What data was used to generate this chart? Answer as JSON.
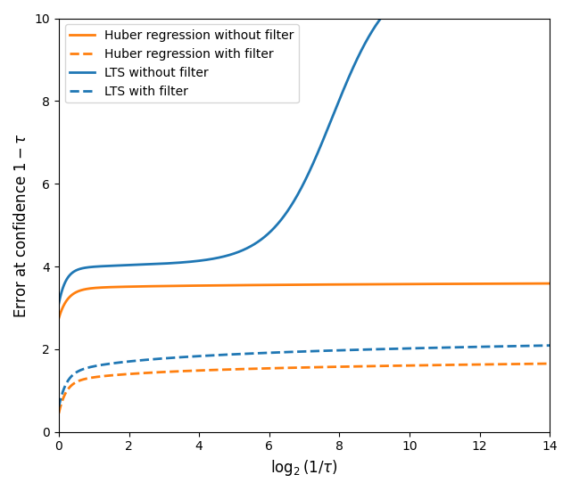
{
  "title": "",
  "xlabel": "log_2(1/\\tau)",
  "ylabel": "Error at confidence 1 - \\tau",
  "xlim": [
    0,
    14
  ],
  "ylim": [
    0,
    10
  ],
  "xticks": [
    0,
    2,
    4,
    6,
    8,
    10,
    12,
    14
  ],
  "yticks": [
    0,
    2,
    4,
    6,
    8,
    10
  ],
  "orange_color": "#ff7f0e",
  "blue_color": "#1f77b4",
  "legend_labels": [
    "Huber regression without filter",
    "Huber regression with filter",
    "LTS without filter",
    "LTS with filter"
  ],
  "figsize": [
    6.4,
    5.51
  ],
  "dpi": 100
}
